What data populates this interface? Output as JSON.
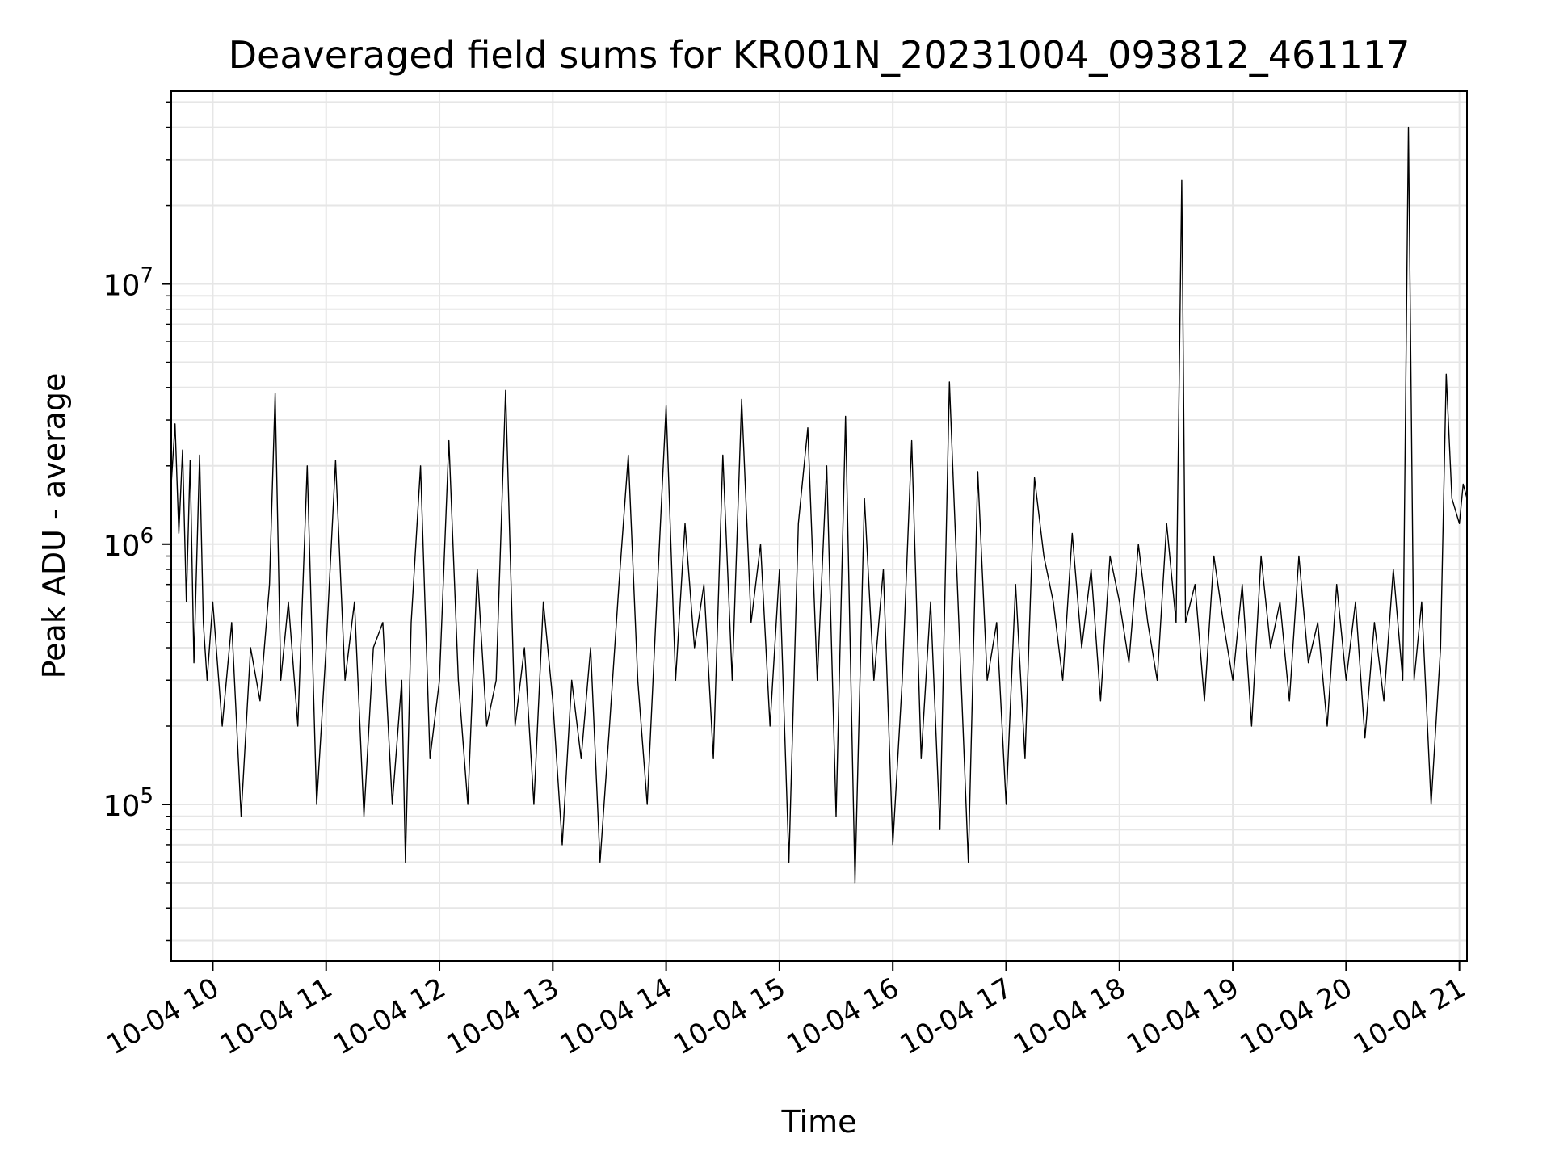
{
  "chart_data": {
    "type": "line",
    "title": "Deaveraged field sums for KR001N_20231004_093812_461117",
    "xlabel": "Time",
    "ylabel": "Peak ADU - average",
    "yscale": "log",
    "ylim": [
      25000,
      55000000
    ],
    "xlim": [
      "2023-10-04 09:38",
      "2023-10-04 21:04"
    ],
    "grid": true,
    "line_color": "#000000",
    "grid_color": "#e6e6e6",
    "x_ticks": [
      {
        "t": "2023-10-04 10:00",
        "label": "10-04 10"
      },
      {
        "t": "2023-10-04 11:00",
        "label": "10-04 11"
      },
      {
        "t": "2023-10-04 12:00",
        "label": "10-04 12"
      },
      {
        "t": "2023-10-04 13:00",
        "label": "10-04 13"
      },
      {
        "t": "2023-10-04 14:00",
        "label": "10-04 14"
      },
      {
        "t": "2023-10-04 15:00",
        "label": "10-04 15"
      },
      {
        "t": "2023-10-04 16:00",
        "label": "10-04 16"
      },
      {
        "t": "2023-10-04 17:00",
        "label": "10-04 17"
      },
      {
        "t": "2023-10-04 18:00",
        "label": "10-04 18"
      },
      {
        "t": "2023-10-04 19:00",
        "label": "10-04 19"
      },
      {
        "t": "2023-10-04 20:00",
        "label": "10-04 20"
      },
      {
        "t": "2023-10-04 21:00",
        "label": "10-04 21"
      }
    ],
    "y_ticks": [
      {
        "value": 100000,
        "base": "10",
        "exp": "5"
      },
      {
        "value": 1000000,
        "base": "10",
        "exp": "6"
      },
      {
        "value": 10000000,
        "base": "10",
        "exp": "7"
      }
    ],
    "series": [
      {
        "x": [
          "2023-10-04 09:38",
          "2023-10-04 09:40",
          "2023-10-04 09:42",
          "2023-10-04 09:44",
          "2023-10-04 09:46",
          "2023-10-04 09:48",
          "2023-10-04 09:50",
          "2023-10-04 09:53",
          "2023-10-04 09:55",
          "2023-10-04 09:57",
          "2023-10-04 10:00",
          "2023-10-04 10:05",
          "2023-10-04 10:10",
          "2023-10-04 10:15",
          "2023-10-04 10:20",
          "2023-10-04 10:25",
          "2023-10-04 10:30",
          "2023-10-04 10:33",
          "2023-10-04 10:36",
          "2023-10-04 10:40",
          "2023-10-04 10:45",
          "2023-10-04 10:50",
          "2023-10-04 10:55",
          "2023-10-04 11:00",
          "2023-10-04 11:05",
          "2023-10-04 11:10",
          "2023-10-04 11:15",
          "2023-10-04 11:20",
          "2023-10-04 11:25",
          "2023-10-04 11:30",
          "2023-10-04 11:35",
          "2023-10-04 11:40",
          "2023-10-04 11:42",
          "2023-10-04 11:45",
          "2023-10-04 11:50",
          "2023-10-04 11:55",
          "2023-10-04 12:00",
          "2023-10-04 12:05",
          "2023-10-04 12:10",
          "2023-10-04 12:15",
          "2023-10-04 12:20",
          "2023-10-04 12:25",
          "2023-10-04 12:30",
          "2023-10-04 12:35",
          "2023-10-04 12:40",
          "2023-10-04 12:45",
          "2023-10-04 12:50",
          "2023-10-04 12:55",
          "2023-10-04 13:00",
          "2023-10-04 13:05",
          "2023-10-04 13:10",
          "2023-10-04 13:15",
          "2023-10-04 13:20",
          "2023-10-04 13:25",
          "2023-10-04 13:30",
          "2023-10-04 13:35",
          "2023-10-04 13:40",
          "2023-10-04 13:45",
          "2023-10-04 13:50",
          "2023-10-04 13:55",
          "2023-10-04 14:00",
          "2023-10-04 14:05",
          "2023-10-04 14:10",
          "2023-10-04 14:15",
          "2023-10-04 14:20",
          "2023-10-04 14:25",
          "2023-10-04 14:30",
          "2023-10-04 14:35",
          "2023-10-04 14:40",
          "2023-10-04 14:45",
          "2023-10-04 14:50",
          "2023-10-04 14:55",
          "2023-10-04 15:00",
          "2023-10-04 15:05",
          "2023-10-04 15:10",
          "2023-10-04 15:15",
          "2023-10-04 15:20",
          "2023-10-04 15:25",
          "2023-10-04 15:30",
          "2023-10-04 15:35",
          "2023-10-04 15:40",
          "2023-10-04 15:45",
          "2023-10-04 15:50",
          "2023-10-04 15:55",
          "2023-10-04 16:00",
          "2023-10-04 16:05",
          "2023-10-04 16:10",
          "2023-10-04 16:15",
          "2023-10-04 16:20",
          "2023-10-04 16:25",
          "2023-10-04 16:30",
          "2023-10-04 16:35",
          "2023-10-04 16:40",
          "2023-10-04 16:45",
          "2023-10-04 16:50",
          "2023-10-04 16:55",
          "2023-10-04 17:00",
          "2023-10-04 17:05",
          "2023-10-04 17:10",
          "2023-10-04 17:15",
          "2023-10-04 17:20",
          "2023-10-04 17:25",
          "2023-10-04 17:30",
          "2023-10-04 17:35",
          "2023-10-04 17:40",
          "2023-10-04 17:45",
          "2023-10-04 17:50",
          "2023-10-04 17:55",
          "2023-10-04 18:00",
          "2023-10-04 18:05",
          "2023-10-04 18:10",
          "2023-10-04 18:15",
          "2023-10-04 18:20",
          "2023-10-04 18:25",
          "2023-10-04 18:30",
          "2023-10-04 18:33",
          "2023-10-04 18:35",
          "2023-10-04 18:40",
          "2023-10-04 18:45",
          "2023-10-04 18:50",
          "2023-10-04 18:55",
          "2023-10-04 19:00",
          "2023-10-04 19:05",
          "2023-10-04 19:10",
          "2023-10-04 19:15",
          "2023-10-04 19:20",
          "2023-10-04 19:25",
          "2023-10-04 19:30",
          "2023-10-04 19:35",
          "2023-10-04 19:40",
          "2023-10-04 19:45",
          "2023-10-04 19:50",
          "2023-10-04 19:55",
          "2023-10-04 20:00",
          "2023-10-04 20:05",
          "2023-10-04 20:10",
          "2023-10-04 20:15",
          "2023-10-04 20:20",
          "2023-10-04 20:25",
          "2023-10-04 20:30",
          "2023-10-04 20:33",
          "2023-10-04 20:36",
          "2023-10-04 20:40",
          "2023-10-04 20:45",
          "2023-10-04 20:50",
          "2023-10-04 20:53",
          "2023-10-04 20:56",
          "2023-10-04 21:00",
          "2023-10-04 21:02",
          "2023-10-04 21:04"
        ],
        "y": [
          1700000,
          2900000,
          1100000,
          2300000,
          600000,
          2100000,
          350000,
          2200000,
          500000,
          300000,
          600000,
          200000,
          500000,
          90000,
          400000,
          250000,
          700000,
          3800000,
          300000,
          600000,
          200000,
          2000000,
          100000,
          400000,
          2100000,
          300000,
          600000,
          90000,
          400000,
          500000,
          100000,
          300000,
          60000,
          500000,
          2000000,
          150000,
          300000,
          2500000,
          300000,
          100000,
          800000,
          200000,
          300000,
          3900000,
          200000,
          400000,
          100000,
          600000,
          250000,
          70000,
          300000,
          150000,
          400000,
          60000,
          200000,
          700000,
          2200000,
          300000,
          100000,
          600000,
          3400000,
          300000,
          1200000,
          400000,
          700000,
          150000,
          2200000,
          300000,
          3600000,
          500000,
          1000000,
          200000,
          800000,
          60000,
          1200000,
          2800000,
          300000,
          2000000,
          90000,
          3100000,
          50000,
          1500000,
          300000,
          800000,
          70000,
          300000,
          2500000,
          150000,
          600000,
          80000,
          4200000,
          500000,
          60000,
          1900000,
          300000,
          500000,
          100000,
          700000,
          150000,
          1800000,
          900000,
          600000,
          300000,
          1100000,
          400000,
          800000,
          250000,
          900000,
          600000,
          350000,
          1000000,
          500000,
          300000,
          1200000,
          500000,
          25000000,
          500000,
          700000,
          250000,
          900000,
          500000,
          300000,
          700000,
          200000,
          900000,
          400000,
          600000,
          250000,
          900000,
          350000,
          500000,
          200000,
          700000,
          300000,
          600000,
          180000,
          500000,
          250000,
          800000,
          300000,
          40000000,
          300000,
          600000,
          100000,
          400000,
          4500000,
          1500000,
          1200000,
          1700000,
          1500000
        ]
      }
    ]
  }
}
